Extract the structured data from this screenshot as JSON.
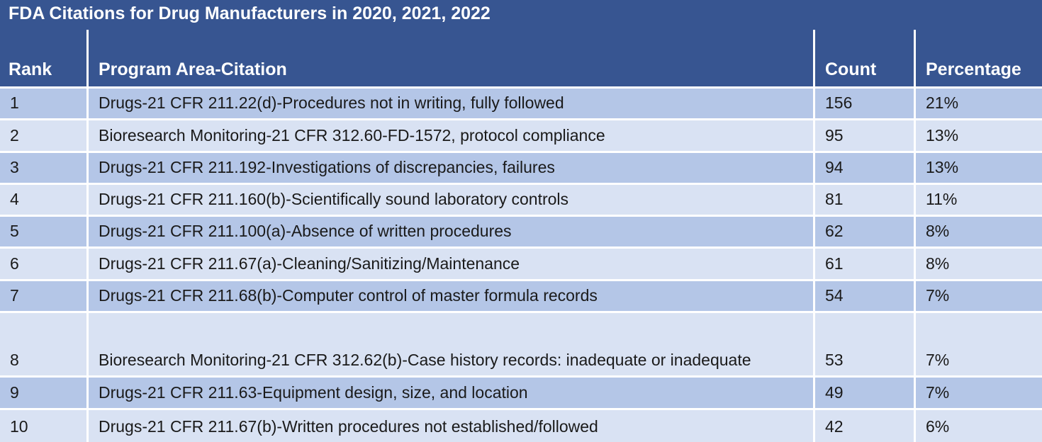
{
  "colors": {
    "header_bg": "#375591",
    "band_dark": "#b4c6e7",
    "band_light": "#d9e2f3",
    "grid_line": "#ffffff",
    "header_text": "#ffffff",
    "body_text": "#1a1a1a"
  },
  "chart_data": {
    "type": "table",
    "title": "FDA Citations for Drug Manufacturers in 2020, 2021, 2022",
    "columns": [
      "Rank",
      "Program Area-Citation",
      "Count",
      "Percentage"
    ],
    "rows": [
      {
        "rank": "1",
        "citation": "Drugs-21 CFR 211.22(d)-Procedures not in writing, fully followed",
        "count": "156",
        "percentage": "21%"
      },
      {
        "rank": "2",
        "citation": "Bioresearch Monitoring-21 CFR 312.60-FD-1572, protocol compliance",
        "count": "95",
        "percentage": "13%"
      },
      {
        "rank": "3",
        "citation": "Drugs-21 CFR 211.192-Investigations of discrepancies, failures",
        "count": "94",
        "percentage": "13%"
      },
      {
        "rank": "4",
        "citation": "Drugs-21 CFR 211.160(b)-Scientifically sound laboratory controls",
        "count": "81",
        "percentage": "11%"
      },
      {
        "rank": "5",
        "citation": "Drugs-21 CFR 211.100(a)-Absence of written procedures",
        "count": "62",
        "percentage": "8%"
      },
      {
        "rank": "6",
        "citation": "Drugs-21 CFR 211.67(a)-Cleaning/Sanitizing/Maintenance",
        "count": "61",
        "percentage": "8%"
      },
      {
        "rank": "7",
        "citation": "Drugs-21 CFR 211.68(b)-Computer control of master formula records",
        "count": "54",
        "percentage": "7%"
      },
      {
        "rank": "8",
        "citation": "Bioresearch Monitoring-21 CFR 312.62(b)-Case history records: inadequate or inadequate",
        "count": "53",
        "percentage": "7%"
      },
      {
        "rank": "9",
        "citation": "Drugs-21 CFR 211.63-Equipment design, size, and location",
        "count": "49",
        "percentage": "7%"
      },
      {
        "rank": "10",
        "citation": "Drugs-21 CFR 211.67(b)-Written procedures not established/followed",
        "count": "42",
        "percentage": "6%"
      }
    ]
  }
}
